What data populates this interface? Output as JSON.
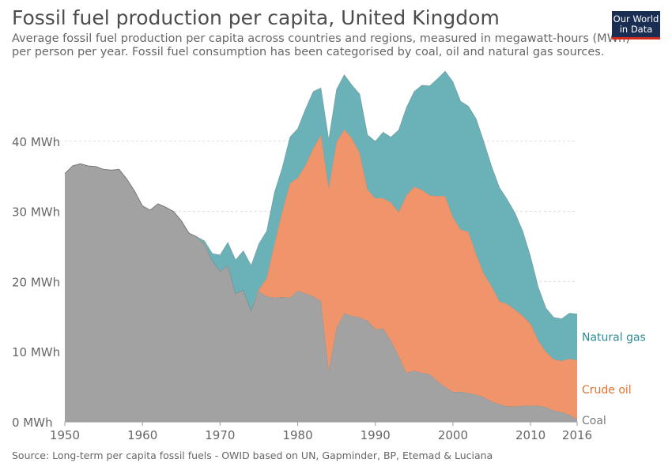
{
  "header": {
    "title": "Fossil fuel production per capita, United Kingdom",
    "subtitle": "Average fossil fuel production per capita across countries and regions, measured in megawatt-hours (MWh) per person per year. Fossil fuel consumption has been categorised by coal, oil and natural gas sources.",
    "logo_line1": "Our World",
    "logo_line2": "in Data"
  },
  "footer": {
    "source": "Source: Long-term per capita fossil fuels - OWID based on UN, Gapminder, BP, Etemad & Luciana"
  },
  "colors": {
    "coal": "#a2a2a2",
    "oil": "#f0956b",
    "gas": "#6ab1b8",
    "coal_label": "#7b7b7b",
    "oil_label": "#e7702c",
    "gas_label": "#2b8c96",
    "grid": "#dddddd",
    "axis_text": "#666666"
  },
  "chart_data": {
    "type": "area",
    "stacked": true,
    "xlim": [
      1950,
      2016
    ],
    "ylim": [
      0,
      50
    ],
    "x_ticks": [
      {
        "value": 1950,
        "label": "1950"
      },
      {
        "value": 1960,
        "label": "1960"
      },
      {
        "value": 1970,
        "label": "1970"
      },
      {
        "value": 1980,
        "label": "1980"
      },
      {
        "value": 1990,
        "label": "1990"
      },
      {
        "value": 2000,
        "label": "2000"
      },
      {
        "value": 2010,
        "label": "2010"
      },
      {
        "value": 2016,
        "label": "2016"
      }
    ],
    "y_ticks": [
      {
        "value": 0,
        "label": "0 MWh"
      },
      {
        "value": 10,
        "label": "10 MWh"
      },
      {
        "value": 20,
        "label": "20 MWh"
      },
      {
        "value": 30,
        "label": "30 MWh"
      },
      {
        "value": 40,
        "label": "40 MWh"
      }
    ],
    "grid": true,
    "legend_placement": "right, inline labels",
    "x": [
      1950,
      1951,
      1952,
      1953,
      1954,
      1955,
      1956,
      1957,
      1958,
      1959,
      1960,
      1961,
      1962,
      1963,
      1964,
      1965,
      1966,
      1967,
      1968,
      1969,
      1970,
      1971,
      1972,
      1973,
      1974,
      1975,
      1976,
      1977,
      1978,
      1979,
      1980,
      1981,
      1982,
      1983,
      1984,
      1985,
      1986,
      1987,
      1988,
      1989,
      1990,
      1991,
      1992,
      1993,
      1994,
      1995,
      1996,
      1997,
      1998,
      1999,
      2000,
      2001,
      2002,
      2003,
      2004,
      2005,
      2006,
      2007,
      2008,
      2009,
      2010,
      2011,
      2012,
      2013,
      2014,
      2015,
      2016
    ],
    "series": [
      {
        "name": "Coal",
        "key": "coal",
        "values": [
          35.4,
          36.5,
          36.8,
          36.5,
          36.4,
          36.0,
          35.9,
          36.0,
          34.6,
          32.9,
          30.8,
          30.2,
          31.1,
          30.6,
          30.0,
          28.7,
          26.9,
          26.4,
          25.2,
          23.0,
          21.5,
          22.3,
          18.3,
          18.8,
          15.9,
          18.6,
          17.9,
          17.7,
          17.8,
          17.7,
          18.7,
          18.3,
          17.9,
          17.2,
          7.3,
          13.4,
          15.5,
          15.1,
          14.9,
          14.4,
          13.2,
          13.3,
          11.6,
          9.4,
          7.0,
          7.3,
          7.0,
          6.8,
          5.8,
          5.0,
          4.3,
          4.3,
          4.1,
          3.9,
          3.5,
          2.9,
          2.5,
          2.2,
          2.2,
          2.3,
          2.3,
          2.3,
          2.1,
          1.6,
          1.4,
          1.0,
          0.4
        ]
      },
      {
        "name": "Crude oil",
        "key": "oil",
        "values": [
          0,
          0,
          0,
          0,
          0,
          0,
          0,
          0,
          0,
          0,
          0,
          0,
          0,
          0,
          0,
          0,
          0,
          0,
          0.1,
          0,
          0,
          0,
          0,
          0,
          0,
          0.3,
          2.6,
          7.7,
          12.2,
          16.3,
          16.1,
          18.3,
          21.1,
          23.7,
          26.1,
          26.5,
          26.2,
          25.3,
          23.4,
          18.7,
          18.7,
          18.6,
          19.7,
          20.5,
          25.3,
          26.2,
          26.1,
          25.5,
          26.4,
          27.2,
          24.9,
          23.1,
          23.0,
          20.0,
          17.6,
          16.4,
          14.7,
          14.6,
          13.8,
          12.8,
          11.7,
          9.3,
          7.9,
          7.3,
          7.3,
          8.0,
          8.4
        ]
      },
      {
        "name": "Natural gas",
        "key": "gas",
        "values": [
          0,
          0,
          0,
          0,
          0,
          0,
          0,
          0,
          0,
          0,
          0,
          0,
          0,
          0,
          0,
          0,
          0,
          0,
          0.5,
          1.0,
          2.3,
          3.3,
          4.8,
          5.6,
          6.4,
          6.5,
          6.7,
          7.3,
          6.2,
          6.6,
          7.0,
          8.0,
          8.1,
          6.7,
          6.9,
          7.5,
          7.8,
          7.6,
          8.4,
          7.8,
          8.1,
          9.4,
          9.3,
          11.7,
          12.5,
          13.6,
          14.9,
          15.6,
          16.7,
          17.8,
          19.3,
          18.3,
          17.9,
          19.3,
          18.8,
          17.1,
          16.2,
          14.9,
          13.8,
          12.1,
          9.6,
          7.6,
          6.2,
          6.0,
          6.0,
          6.5,
          6.6
        ]
      }
    ],
    "series_label_positions": {
      "coal": "end",
      "oil": "end",
      "gas": "end"
    }
  }
}
